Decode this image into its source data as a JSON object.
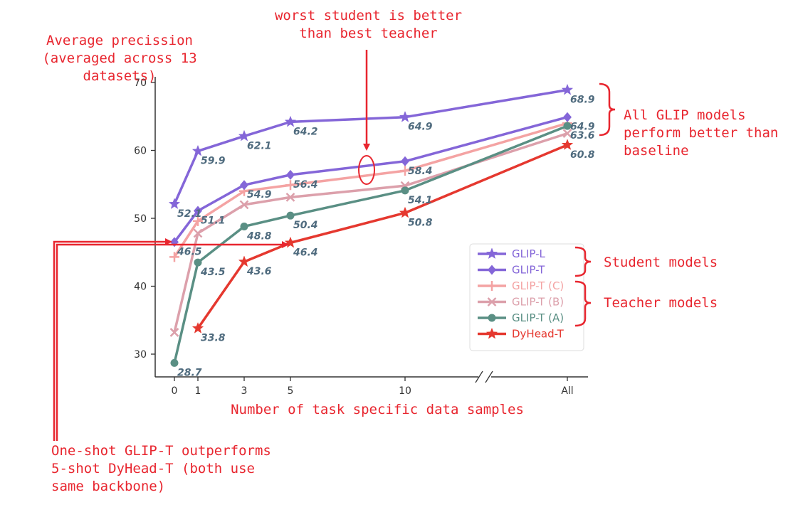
{
  "chart_data": {
    "type": "line",
    "xlabel": "Number of task specific data samples",
    "ylabel": "Average precission\n(averaged across 13 datasets)",
    "x": [
      "0",
      "1",
      "3",
      "5",
      "10",
      "All"
    ],
    "x_ticks": [
      "0",
      "1",
      "3",
      "5",
      "10",
      "All"
    ],
    "y_ticks": [
      30,
      40,
      50,
      60,
      70
    ],
    "ylim": [
      26,
      71
    ],
    "grid": false,
    "legend_position": "lower-right",
    "series": [
      {
        "name": "GLIP-L",
        "color": "#8466d8",
        "marker": "star",
        "values": [
          52.1,
          59.9,
          62.1,
          64.2,
          64.9,
          68.9
        ],
        "labels": [
          "52.1",
          "59.9",
          "62.1",
          "64.2",
          "64.9",
          "68.9"
        ]
      },
      {
        "name": "GLIP-T",
        "color": "#8466d8",
        "marker": "diamond",
        "values": [
          46.5,
          51.1,
          54.9,
          56.4,
          58.4,
          64.9
        ],
        "labels": [
          "46.5",
          "51.1",
          "54.9",
          "56.4",
          "58.4",
          "64.9"
        ]
      },
      {
        "name": "GLIP-T (C)",
        "color": "#f4a3a3",
        "marker": "plus",
        "values": [
          44.3,
          49.6,
          54.0,
          54.9,
          57.0,
          64.0
        ],
        "labels": []
      },
      {
        "name": "GLIP-T (B)",
        "color": "#dca0ab",
        "marker": "x",
        "values": [
          33.2,
          47.8,
          52.0,
          53.1,
          54.8,
          62.5
        ],
        "labels": []
      },
      {
        "name": "GLIP-T (A)",
        "color": "#5a8f84",
        "marker": "circle",
        "values": [
          28.7,
          43.5,
          48.8,
          50.4,
          54.1,
          63.6
        ],
        "labels": [
          "28.7",
          "43.5",
          "48.8",
          "50.4",
          "54.1",
          "63.6"
        ]
      },
      {
        "name": "DyHead-T",
        "color": "#e5382f",
        "marker": "star",
        "values": [
          null,
          33.8,
          43.6,
          46.4,
          50.8,
          60.8
        ],
        "labels": [
          "",
          "33.8",
          "43.6",
          "46.4",
          "50.8",
          "60.8"
        ]
      }
    ]
  },
  "annotations": {
    "worst_student": "worst student is better\nthan best teacher",
    "all_glip": "All GLIP models\nperform better than\nbaseline",
    "student_models": "Student models",
    "teacher_models": "Teacher models",
    "one_shot": "One-shot GLIP-T outperforms\n5-shot DyHead-T (both use\nsame backbone)"
  },
  "colors": {
    "annotation": "#e8262f",
    "axis": "#333333"
  }
}
